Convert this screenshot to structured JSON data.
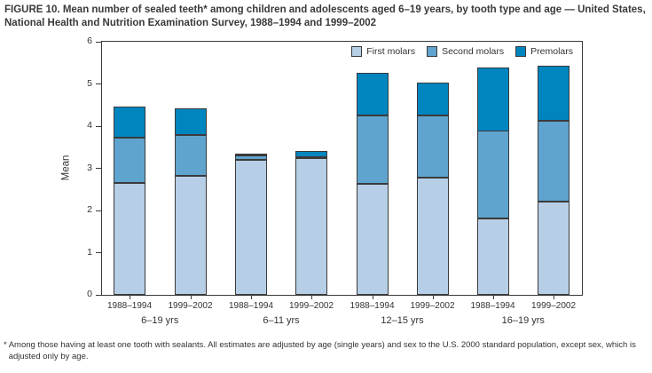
{
  "title": "FIGURE 10. Mean number of sealed teeth* among children and adolescents aged 6–19 years, by tooth type and age — United States, National Health and Nutrition Examination Survey, 1988–1994 and 1999–2002",
  "footnote": {
    "marker": "*",
    "text": "Among those having at least one tooth with sealants. All estimates are adjusted by age (single years) and sex to the U.S. 2000 standard population, except sex, which is adjusted only by age."
  },
  "colors": {
    "first_molars": "#b7cfe6",
    "second_molars": "#5fa4ce",
    "premolars": "#0085bf",
    "bar_border": "#3a3a3a",
    "axis": "#3a3a3a",
    "text": "#333333"
  },
  "chart_data": {
    "type": "bar",
    "stacked": true,
    "title": "",
    "xlabel": "",
    "ylabel": "Mean",
    "ylim": [
      0,
      6
    ],
    "yticks": [
      0,
      1,
      2,
      3,
      4,
      5,
      6
    ],
    "grid": false,
    "legend_position": "top-right-inside",
    "groups": [
      "6–19 yrs",
      "6–11 yrs",
      "12–15 yrs",
      "16–19 yrs"
    ],
    "categories": [
      "1988–1994",
      "1999–2002",
      "1988–1994",
      "1999–2002",
      "1988–1994",
      "1999–2002",
      "1988–1994",
      "1999–2002"
    ],
    "series": [
      {
        "name": "First molars",
        "color": "#b7cfe6",
        "values": [
          2.65,
          2.83,
          3.21,
          3.24,
          2.63,
          2.78,
          1.8,
          2.21
        ]
      },
      {
        "name": "Second molars",
        "color": "#5fa4ce",
        "values": [
          1.08,
          0.96,
          0.1,
          0.03,
          1.63,
          1.48,
          2.08,
          1.92
        ]
      },
      {
        "name": "Premolars",
        "color": "#0085bf",
        "values": [
          0.74,
          0.64,
          0.04,
          0.15,
          1.01,
          0.78,
          1.51,
          1.3
        ]
      }
    ],
    "totals": [
      4.47,
      4.43,
      3.35,
      3.42,
      5.27,
      5.04,
      5.39,
      5.43
    ]
  }
}
